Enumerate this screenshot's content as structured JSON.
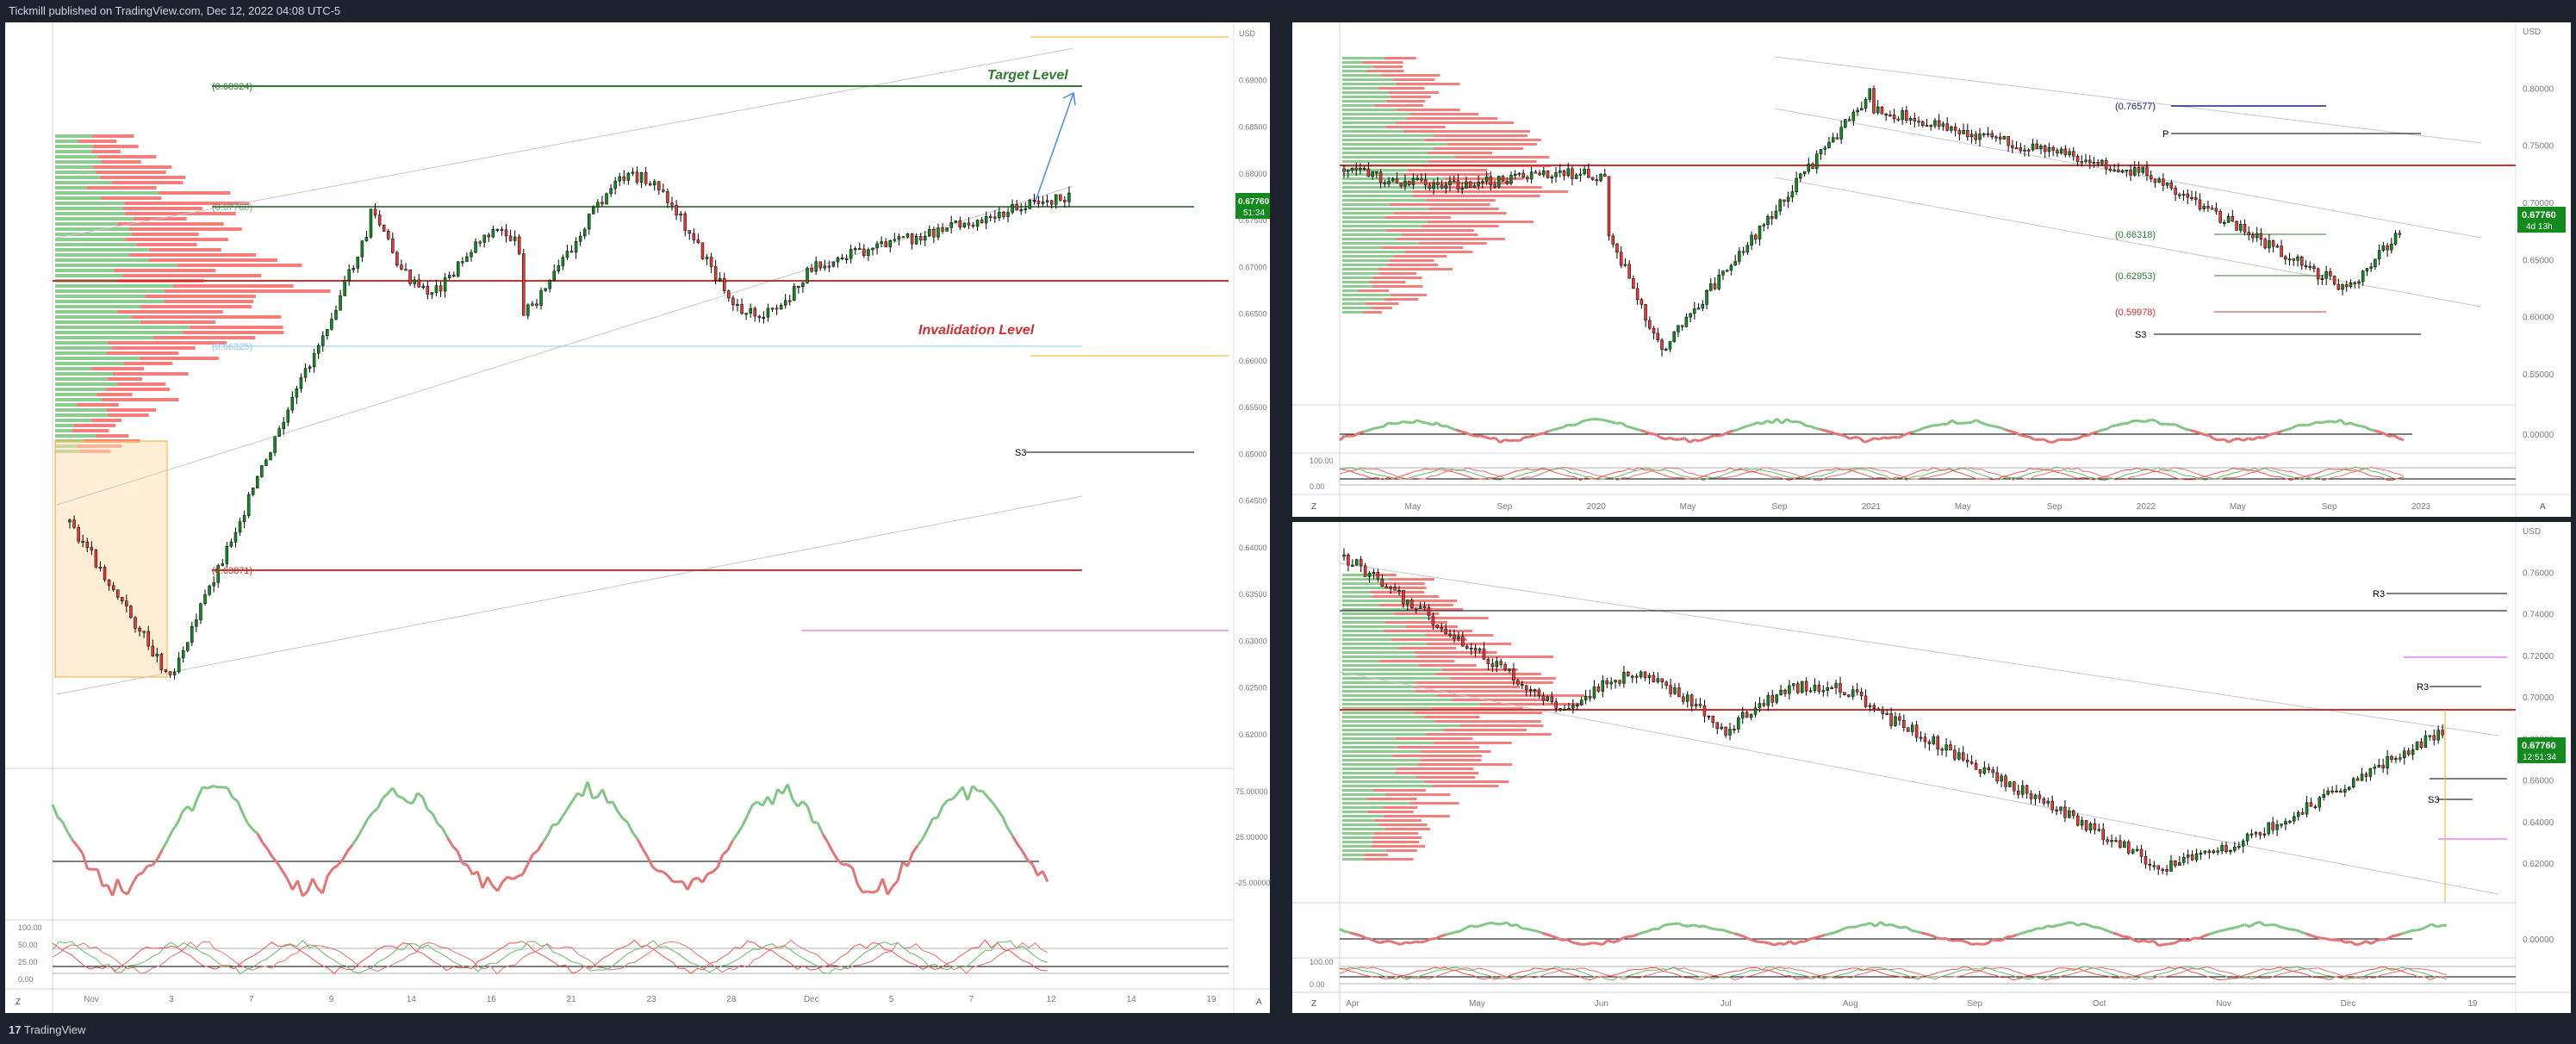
{
  "header": {
    "publisher_text": "Tickmill published on TradingView.com, Dec 12, 2022 04:08 UTC-5"
  },
  "footer": {
    "brand": "TradingView",
    "brand_glyph": "17"
  },
  "colors": {
    "bull": "#26a69a",
    "bull_alt": "#138a1e",
    "bear": "#ef5350",
    "target_green": "#2e7d32",
    "invalidation_red": "#d32f2f",
    "gold": "#f9a825",
    "magenta": "#e040fb",
    "price_tag_bg": "#138a1e"
  },
  "left_chart": {
    "target_label": "Target Level",
    "invalidation_label": "Invalidation Level",
    "level_labels": {
      "target": "(0.68924)",
      "mid": "(0.67760)",
      "lower_blue": "(0.66225)",
      "invalidation": "(0.63871)",
      "s3": "S3"
    },
    "price_axis": [
      "USD",
      "0.69000",
      "0.68500",
      "0.68000",
      "0.67500",
      "0.67000",
      "0.66500",
      "0.66000",
      "0.65500",
      "0.65000",
      "0.64500",
      "0.64000",
      "0.63500",
      "0.63000",
      "0.62500",
      "0.62000"
    ],
    "price_tag": {
      "price": "0.67760",
      "countdown": "51:34"
    },
    "osc_axis": [
      "75.00000",
      "25.00000",
      "-25.00000"
    ],
    "stoch_axis": [
      "100.00",
      "50.00",
      "25.00",
      "0.00"
    ],
    "time_axis": [
      "Nov",
      "3",
      "7",
      "9",
      "14",
      "16",
      "21",
      "23",
      "28",
      "Dec",
      "5",
      "7",
      "12",
      "14",
      "19"
    ],
    "corner_left": "Z",
    "corner_right": "A"
  },
  "right_top_chart": {
    "level_labels": {
      "top": "(0.76577)",
      "p": "P",
      "l1": "(0.66318)",
      "l2": "(0.62953)",
      "l3": "(0.59978)",
      "s3": "S3"
    },
    "price_axis": [
      "USD",
      "0.80000",
      "0.75000",
      "0.70000",
      "0.65000",
      "0.60000",
      "0.55000"
    ],
    "price_tag": {
      "price": "0.67760",
      "countdown": "4d 13h"
    },
    "osc_axis": [
      "0.00000"
    ],
    "stoch_axis": [
      "100.00",
      "0.00"
    ],
    "time_axis": [
      "May",
      "Sep",
      "2020",
      "May",
      "Sep",
      "2021",
      "May",
      "Sep",
      "2022",
      "May",
      "Sep",
      "2023"
    ],
    "corner_left": "Z",
    "corner_right": "A"
  },
  "right_bottom_chart": {
    "level_labels": {
      "r3_top": "R3",
      "r3": "R3",
      "s3": "S3"
    },
    "price_axis": [
      "USD",
      "0.76000",
      "0.74000",
      "0.72000",
      "0.70000",
      "0.68000",
      "0.66000",
      "0.64000",
      "0.62000"
    ],
    "price_tag": {
      "price": "0.67760",
      "countdown": "12:51:34"
    },
    "osc_axis": [
      "0.00000"
    ],
    "stoch_axis": [
      "100.00",
      "0.00"
    ],
    "time_axis": [
      "Apr",
      "May",
      "Jun",
      "Jul",
      "Aug",
      "Sep",
      "Oct",
      "Nov",
      "Dec",
      "19"
    ],
    "corner_left": "Z",
    "corner_right": "A"
  }
}
